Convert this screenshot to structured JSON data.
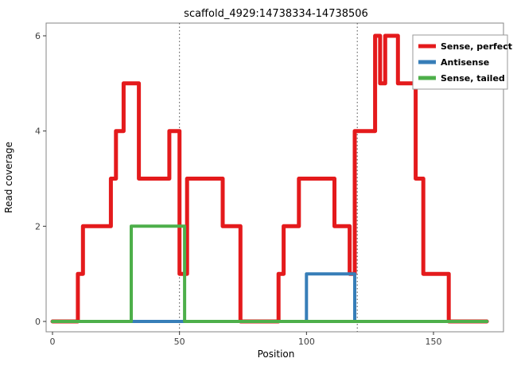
{
  "chart_data": {
    "type": "line",
    "subtype": "step-coverage",
    "title": "scaffold_4929:14738334-14738506",
    "xlabel": "Position",
    "ylabel": "Read coverage",
    "x_ticks": [
      0,
      50,
      100,
      150
    ],
    "y_ticks": [
      0,
      2,
      4,
      6
    ],
    "xlim": [
      -2,
      178
    ],
    "ylim": [
      -0.25,
      6.25
    ],
    "grid": false,
    "vlines": [
      50,
      120
    ],
    "vline_style": "dotted",
    "vline_color": "#4d4d4d",
    "panel_border_color": "#858585",
    "panel_background": "#ffffff",
    "legend_position": "top-right",
    "series": [
      {
        "name": "Sense, perfect",
        "color": "#E41A1C",
        "width": 5,
        "steps": [
          [
            0,
            0
          ],
          [
            10,
            1
          ],
          [
            12,
            2
          ],
          [
            23,
            3
          ],
          [
            25,
            4
          ],
          [
            28,
            5
          ],
          [
            34,
            3
          ],
          [
            46,
            4
          ],
          [
            50,
            1
          ],
          [
            53,
            3
          ],
          [
            67,
            2
          ],
          [
            74,
            0
          ],
          [
            89,
            1
          ],
          [
            91,
            2
          ],
          [
            97,
            3
          ],
          [
            111,
            2
          ],
          [
            117,
            1
          ],
          [
            119,
            4
          ],
          [
            127,
            6
          ],
          [
            129,
            5
          ],
          [
            131,
            6
          ],
          [
            136,
            5
          ],
          [
            143,
            3
          ],
          [
            146,
            1
          ],
          [
            156,
            0
          ],
          [
            171,
            0
          ]
        ]
      },
      {
        "name": "Antisense",
        "color": "#377EB8",
        "width": 4,
        "steps": [
          [
            0,
            0
          ],
          [
            100,
            1
          ],
          [
            119,
            0
          ],
          [
            171,
            0
          ]
        ]
      },
      {
        "name": "Sense, tailed",
        "color": "#4DAF4A",
        "width": 4,
        "steps": [
          [
            0,
            0
          ],
          [
            31,
            2
          ],
          [
            52,
            0
          ],
          [
            171,
            0
          ]
        ]
      }
    ]
  }
}
